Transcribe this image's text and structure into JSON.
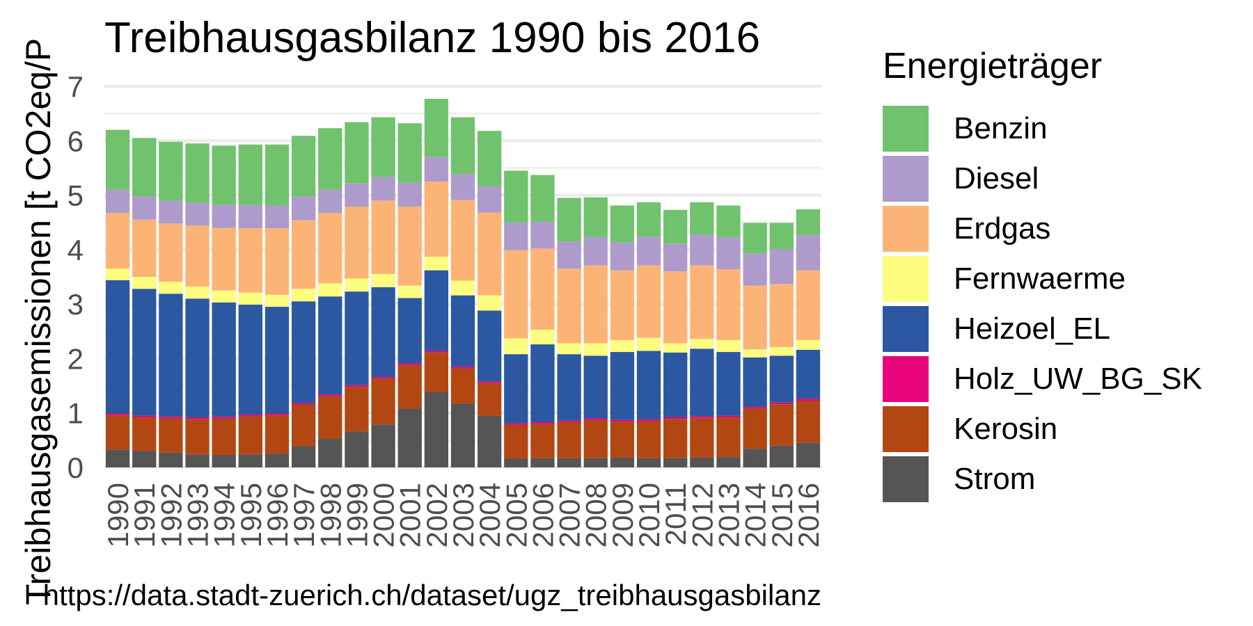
{
  "chart_data": {
    "type": "bar",
    "stacked": true,
    "title": "Treibhausgasbilanz 1990 bis 2016",
    "ylabel": "Treibhausgasemissionen [t CO2eq/P",
    "caption": "https://data.stadt-zuerich.ch/dataset/ugz_treibhausgasbilanz",
    "legend_title": "Energieträger",
    "legend_position": "right",
    "grid": true,
    "ylim": [
      0,
      7
    ],
    "yticks": [
      0,
      1,
      2,
      3,
      4,
      5,
      6,
      7
    ],
    "categories": [
      "1990",
      "1991",
      "1992",
      "1993",
      "1994",
      "1995",
      "1996",
      "1997",
      "1998",
      "1999",
      "2000",
      "2001",
      "2002",
      "2003",
      "2004",
      "2005",
      "2006",
      "2007",
      "2008",
      "2009",
      "2010",
      "2011",
      "2012",
      "2013",
      "2014",
      "2015",
      "2016"
    ],
    "series": [
      {
        "name": "Strom",
        "color": "#555555",
        "values": [
          0.33,
          0.3,
          0.27,
          0.24,
          0.23,
          0.24,
          0.25,
          0.39,
          0.53,
          0.66,
          0.79,
          1.08,
          1.38,
          1.17,
          0.95,
          0.16,
          0.17,
          0.17,
          0.17,
          0.18,
          0.17,
          0.17,
          0.18,
          0.19,
          0.34,
          0.4,
          0.45
        ]
      },
      {
        "name": "Kerosin",
        "color": "#b34713",
        "values": [
          0.63,
          0.62,
          0.63,
          0.65,
          0.67,
          0.7,
          0.71,
          0.76,
          0.78,
          0.82,
          0.84,
          0.8,
          0.73,
          0.65,
          0.6,
          0.62,
          0.63,
          0.66,
          0.7,
          0.66,
          0.68,
          0.72,
          0.73,
          0.73,
          0.74,
          0.76,
          0.77
        ]
      },
      {
        "name": "Holz_UW_BG_SK",
        "color": "#e7037a",
        "values": [
          0.03,
          0.03,
          0.03,
          0.03,
          0.03,
          0.03,
          0.03,
          0.03,
          0.03,
          0.03,
          0.03,
          0.03,
          0.03,
          0.03,
          0.03,
          0.03,
          0.03,
          0.03,
          0.03,
          0.03,
          0.03,
          0.03,
          0.03,
          0.03,
          0.03,
          0.03,
          0.04
        ]
      },
      {
        "name": "Heizoel_EL",
        "color": "#2c58a1",
        "values": [
          2.45,
          2.33,
          2.26,
          2.18,
          2.1,
          2.02,
          1.96,
          1.87,
          1.8,
          1.72,
          1.65,
          1.2,
          1.48,
          1.31,
          1.3,
          1.27,
          1.43,
          1.22,
          1.15,
          1.25,
          1.26,
          1.19,
          1.24,
          1.17,
          0.91,
          0.86,
          0.9
        ]
      },
      {
        "name": "Fernwaerme",
        "color": "#fdfd80",
        "values": [
          0.21,
          0.22,
          0.22,
          0.22,
          0.22,
          0.22,
          0.22,
          0.23,
          0.24,
          0.24,
          0.24,
          0.23,
          0.25,
          0.27,
          0.28,
          0.29,
          0.27,
          0.2,
          0.23,
          0.22,
          0.24,
          0.17,
          0.18,
          0.22,
          0.15,
          0.16,
          0.18
        ]
      },
      {
        "name": "Erdgas",
        "color": "#fbb476",
        "values": [
          1.02,
          1.05,
          1.07,
          1.12,
          1.15,
          1.18,
          1.22,
          1.26,
          1.29,
          1.32,
          1.35,
          1.45,
          1.38,
          1.48,
          1.52,
          1.62,
          1.49,
          1.37,
          1.43,
          1.28,
          1.33,
          1.32,
          1.35,
          1.3,
          1.17,
          1.16,
          1.28
        ]
      },
      {
        "name": "Diesel",
        "color": "#ae9bcb",
        "values": [
          0.43,
          0.43,
          0.42,
          0.42,
          0.42,
          0.43,
          0.42,
          0.44,
          0.43,
          0.43,
          0.43,
          0.44,
          0.45,
          0.48,
          0.48,
          0.51,
          0.49,
          0.5,
          0.52,
          0.51,
          0.53,
          0.51,
          0.56,
          0.59,
          0.59,
          0.64,
          0.65
        ]
      },
      {
        "name": "Benzin",
        "color": "#70c26d",
        "values": [
          1.1,
          1.07,
          1.08,
          1.09,
          1.09,
          1.11,
          1.12,
          1.11,
          1.13,
          1.12,
          1.1,
          1.09,
          1.07,
          1.04,
          1.02,
          0.95,
          0.86,
          0.8,
          0.73,
          0.68,
          0.63,
          0.62,
          0.6,
          0.58,
          0.56,
          0.48,
          0.47
        ]
      }
    ]
  }
}
